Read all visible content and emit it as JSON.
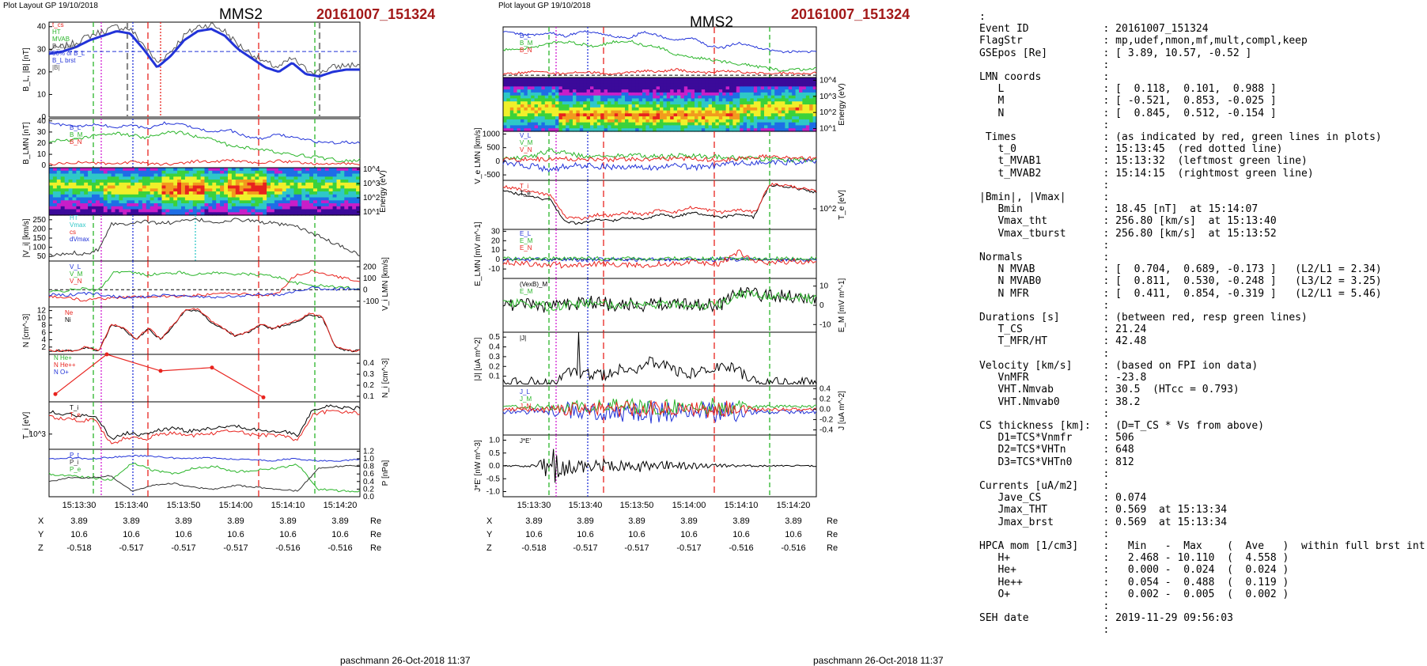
{
  "left": {
    "layout_label": "Plot Layout GP 19/10/2018",
    "title": "MMS2",
    "event": "20161007_151324",
    "panels": [
      {
        "ylabel": "B_L, |B| [nT]",
        "ylim": [
          0,
          42
        ],
        "ticks": [
          "0",
          "10",
          "20",
          "30",
          "40"
        ],
        "legend": [
          "t_cs",
          "HT",
          "MVAB",
          "B_L,min",
          "50% of B_L",
          "B_L brst",
          "|B|"
        ]
      },
      {
        "ylabel": "B_LMN [nT]",
        "ylim": [
          -2,
          42
        ],
        "ticks": [
          "0",
          "10",
          "20",
          "30",
          "40"
        ],
        "legend": [
          "B_L",
          "B_M",
          "B_N"
        ]
      },
      {
        "ylabel": "Energy (eV)",
        "ylim": [
          1,
          4
        ],
        "ticks": [
          "10^1",
          "10^2",
          "10^3",
          "10^4"
        ],
        "legend": []
      },
      {
        "ylabel": "|V_i| [km/s]",
        "ylim": [
          25,
          275
        ],
        "ticks": [
          "50",
          "100",
          "150",
          "200",
          "250"
        ],
        "legend": [
          "HT",
          "Vmax",
          "cs",
          "dVmax"
        ]
      },
      {
        "ylabel": "V_i LMN [km/s]",
        "ylim": [
          -150,
          250
        ],
        "ticks": [
          "-100",
          "0",
          "100",
          "200"
        ],
        "legend": [
          "V_L",
          "V_M",
          "V_N"
        ]
      },
      {
        "ylabel": "N [cm^-3]",
        "ylim": [
          0,
          13
        ],
        "ticks": [
          "2",
          "4",
          "6",
          "8",
          "10",
          "12"
        ],
        "legend": [
          "Ne",
          "Ni"
        ]
      },
      {
        "ylabel": "N_i [cm^-3]",
        "ylim": [
          0.05,
          0.48
        ],
        "ticks": [
          "0.1",
          "0.2",
          "0.3",
          "0.4"
        ],
        "legend": [
          "N He+",
          "N He++",
          "N O+"
        ]
      },
      {
        "ylabel": "T_i [eV]",
        "ylim": [
          0,
          1
        ],
        "ticks": [
          "10^3"
        ],
        "legend": [
          "T_i",
          "T_e"
        ]
      },
      {
        "ylabel": "P [nPa]",
        "ylim": [
          0,
          1.25
        ],
        "ticks": [
          "0.0",
          "0.2",
          "0.4",
          "0.6",
          "0.8",
          "1.0",
          "1.2"
        ],
        "legend": [
          "P_t",
          "P_i",
          "P_e"
        ]
      }
    ],
    "x_ticks": [
      "15:13:30",
      "15:13:40",
      "15:13:50",
      "15:14:00",
      "15:14:10",
      "15:14:20"
    ],
    "pos_labels": [
      "X",
      "Y",
      "Z"
    ],
    "pos_rows": [
      [
        "3.89",
        "3.89",
        "3.89",
        "3.89",
        "3.89",
        "3.89"
      ],
      [
        "10.6",
        "10.6",
        "10.6",
        "10.6",
        "10.6",
        "10.6"
      ],
      [
        "-0.518",
        "-0.517",
        "-0.517",
        "-0.517",
        "-0.516",
        "-0.516"
      ]
    ],
    "pos_unit": "Re",
    "footer": "paschmann 26-Oct-2018 11:37"
  },
  "middle": {
    "layout_label": "Plot layout GP 19/10/2018",
    "title": "MMS2",
    "event": "20161007_151324",
    "panels": [
      {
        "ylabel": "B_LMN [nT]",
        "ylim": [
          -2,
          42
        ],
        "ticks": [
          "0",
          "10",
          "20",
          "30",
          "40"
        ],
        "legend": [
          "B_L",
          "B_M",
          "B_N"
        ]
      },
      {
        "ylabel": "Energy (eV)",
        "ylim": [
          1,
          4
        ],
        "ticks": [
          "10^1",
          "10^2",
          "10^3",
          "10^4"
        ],
        "legend": []
      },
      {
        "ylabel": "V_e LMN [km/s]",
        "ylim": [
          -700,
          1100
        ],
        "ticks": [
          "-500",
          "0",
          "500",
          "1000"
        ],
        "legend": [
          "V_L",
          "V_M",
          "V_N"
        ]
      },
      {
        "ylabel": "T_e [eV]",
        "ylim": [
          0,
          1
        ],
        "ticks": [
          "10^2"
        ],
        "legend": [
          "T_i",
          "T_e"
        ]
      },
      {
        "ylabel": "E_LMN [mV m^-1]",
        "ylim": [
          -20,
          32
        ],
        "ticks": [
          "-10",
          "0",
          "10",
          "20",
          "30"
        ],
        "legend": [
          "E_L",
          "E_M",
          "E_N"
        ]
      },
      {
        "ylabel": "E_M [mV m^-1]",
        "ylim": [
          -14,
          14
        ],
        "ticks": [
          "-10",
          "0",
          "10"
        ],
        "legend": [
          "(VexB)_M",
          "E_M"
        ]
      },
      {
        "ylabel": "|J| [uA m^-2]",
        "ylim": [
          0,
          0.55
        ],
        "ticks": [
          "0.1",
          "0.2",
          "0.3",
          "0.4",
          "0.5"
        ],
        "legend": [
          "|J|"
        ]
      },
      {
        "ylabel": "J [uA m^-2]",
        "ylim": [
          -0.5,
          0.45
        ],
        "ticks": [
          "-0.4",
          "-0.2",
          "0.0",
          "0.2",
          "0.4"
        ],
        "legend": [
          "J_L",
          "J_M",
          "J_N"
        ]
      },
      {
        "ylabel": "J*E' [nW m^-3]",
        "ylim": [
          -1.2,
          1.2
        ],
        "ticks": [
          "-1.0",
          "-0.5",
          "0.0",
          "0.5",
          "1.0"
        ],
        "legend": [
          "J*E'"
        ]
      }
    ],
    "x_ticks": [
      "15:13:30",
      "15:13:40",
      "15:13:50",
      "15:14:00",
      "15:14:10",
      "15:14:20"
    ],
    "pos_labels": [
      "X",
      "Y",
      "Z"
    ],
    "pos_rows": [
      [
        "3.89",
        "3.89",
        "3.89",
        "3.89",
        "3.89",
        "3.89"
      ],
      [
        "10.6",
        "10.6",
        "10.6",
        "10.6",
        "10.6",
        "10.6"
      ],
      [
        "-0.518",
        "-0.517",
        "-0.517",
        "-0.517",
        "-0.516",
        "-0.516"
      ]
    ],
    "pos_unit": "Re",
    "footer": "paschmann 26-Oct-2018 11:37"
  },
  "summary_lines": [
    ":",
    "Event ID            : 20161007_151324",
    "FlagStr             : mp,udef,nmon,mf,mult,compl,keep",
    "GSEpos [Re]         : [ 3.89, 10.57, -0.52 ]",
    "                    :",
    "LMN coords          :",
    "   L                : [  0.118,  0.101,  0.988 ]",
    "   M                : [ -0.521,  0.853, -0.025 ]",
    "   N                : [  0.845,  0.512, -0.154 ]",
    "                    :",
    " Times              : (as indicated by red, green lines in plots)",
    "   t_0              : 15:13:45  (red dotted line)",
    "   t_MVAB1          : 15:13:32  (leftmost green line)",
    "   t_MVAB2          : 15:14:15  (rightmost green line)",
    "                    :",
    "|Bmin|, |Vmax|      :",
    "   Bmin             : 18.45 [nT]  at 15:14:07",
    "   Vmax_tht         : 256.80 [km/s]  at 15:13:40",
    "   Vmax_tburst      : 256.80 [km/s]  at 15:13:52",
    "                    :",
    "Normals             :",
    "   N MVAB           : [  0.704,  0.689, -0.173 ]   (L2/L1 = 2.34)",
    "   N MVAB0          : [  0.811,  0.530, -0.248 ]   (L3/L2 = 3.25)",
    "   N MFR            : [  0.411,  0.854, -0.319 ]   (L2/L1 = 5.46)",
    "                    :",
    "Durations [s]       : (between red, resp green lines)",
    "   T_CS             : 21.24",
    "   T_MFR/HT         : 42.48",
    "                    :",
    "Velocity [km/s]     : (based on FPI ion data)",
    "   VnMFR            : -23.8",
    "   VHT.Nmvab        : 30.5  (HTcc = 0.793)",
    "   VHT.Nmvab0       : 38.2",
    "                    :",
    "CS thickness [km]:  : (D=T_CS * Vs from above)",
    "   D1=TCS*Vnmfr     : 506",
    "   D2=TCS*VHTn      : 648",
    "   D3=TCS*VHTn0     : 812",
    "                    :",
    "Currents [uA/m2]    :",
    "   Jave_CS          : 0.074",
    "   Jmax_THT         : 0.569  at 15:13:34",
    "   Jmax_brst        : 0.569  at 15:13:34",
    "                    :",
    "HPCA mom [1/cm3]    :   Min   -  Max    (  Ave   )  within full brst int",
    "   H+               :   2.468 - 10.110  (  4.558 )",
    "   He+              :   0.000 -  0.024  (  0.024 )",
    "   He++             :   0.054 -  0.488  (  0.119 )",
    "   O+               :   0.002 -  0.005  (  0.002 )",
    "                    :",
    "SEH date            : 2019-11-29 09:56:03",
    "                    :"
  ],
  "colors": {
    "event": "#a31919",
    "red": "#e8231e",
    "green": "#2ab52a",
    "blue": "#2233d8",
    "magenta": "#d21ed2",
    "black": "#000000",
    "gray": "#888888"
  },
  "chart_data": [
    {
      "type": "line",
      "title": "MMS2",
      "subtitle": "20161007_151324",
      "xlabel": "",
      "x_ticks": [
        "15:13:30",
        "15:13:40",
        "15:13:50",
        "15:14:00",
        "15:14:10",
        "15:14:20"
      ],
      "series": [
        {
          "name": "B_L brst",
          "x": [
            "15:13:25",
            "15:13:30",
            "15:13:35",
            "15:13:40",
            "15:13:45",
            "15:13:50",
            "15:13:55",
            "15:14:00",
            "15:14:05",
            "15:14:10",
            "15:14:15",
            "15:14:20"
          ],
          "values": [
            28,
            32,
            36,
            38,
            25,
            35,
            38,
            28,
            22,
            21,
            19,
            21
          ]
        }
      ]
    },
    {
      "type": "line",
      "title": "MMS2",
      "subtitle": "20161007_151324",
      "xlabel": "",
      "x_ticks": [
        "15:13:30",
        "15:13:40",
        "15:13:50",
        "15:14:00",
        "15:14:10",
        "15:14:20"
      ],
      "series": [
        {
          "name": "B_L",
          "x": [
            "15:13:25",
            "15:13:30",
            "15:13:35",
            "15:13:40",
            "15:13:45",
            "15:13:50",
            "15:13:55",
            "15:14:00",
            "15:14:05",
            "15:14:10",
            "15:14:15",
            "15:14:20"
          ],
          "values": [
            38,
            36,
            35,
            37,
            33,
            38,
            37,
            30,
            24,
            28,
            23,
            20
          ]
        }
      ]
    }
  ]
}
